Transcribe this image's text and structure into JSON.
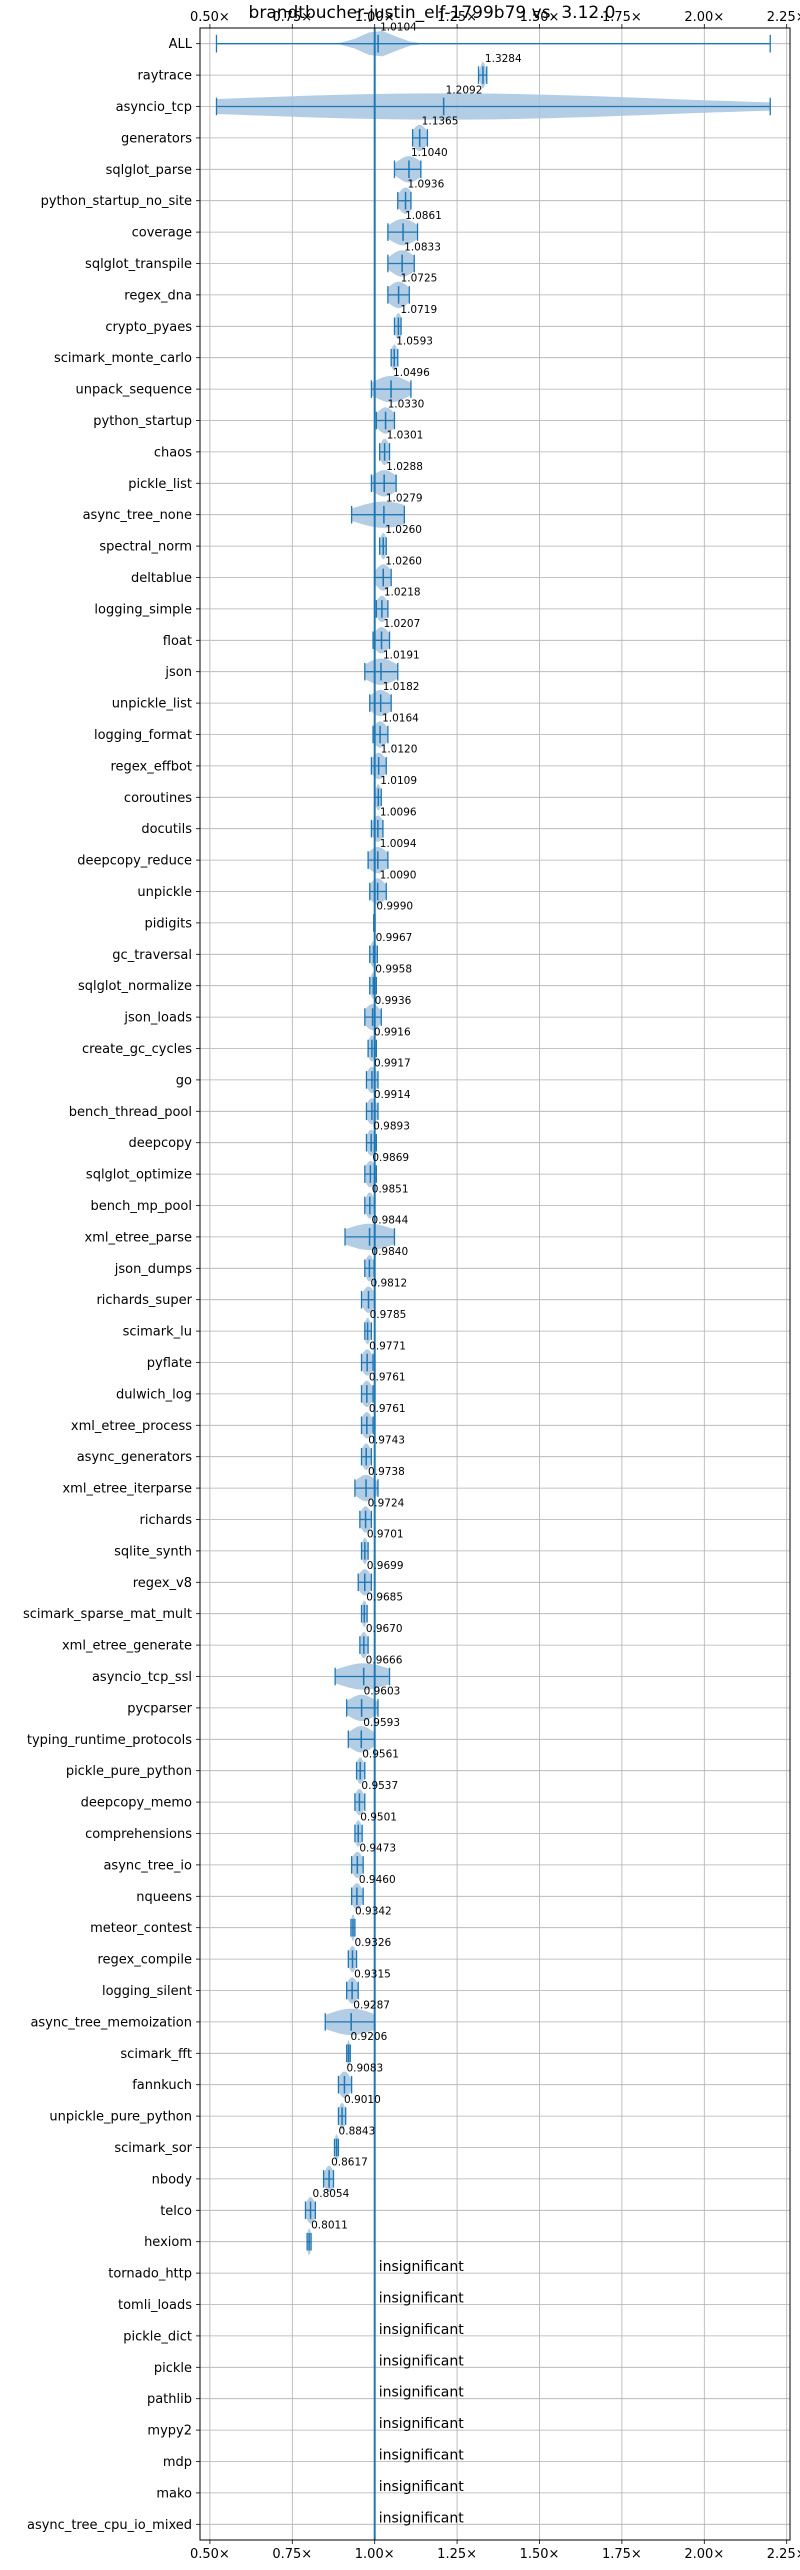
{
  "chart_data": {
    "type": "violin",
    "title": "brandtbucher-justin_elf-1799b79 vs. 3.12.0",
    "xlim": [
      0.47,
      2.26
    ],
    "x_ticks": [
      0.5,
      0.75,
      1.0,
      1.25,
      1.5,
      1.75,
      2.0,
      2.25
    ],
    "x_tick_labels": [
      "0.50×",
      "0.75×",
      "1.00×",
      "1.25×",
      "1.50×",
      "1.75×",
      "2.00×",
      "2.25×"
    ],
    "reference_line": 1.0,
    "grid": true,
    "colors": {
      "body": "#a6c4e0",
      "line": "#1f77b4",
      "grid": "#b0b0b0",
      "ref": "#1f77b4"
    },
    "insignificant_label": "insignificant",
    "benchmarks": [
      {
        "name": "ALL",
        "value": 1.0104,
        "label": "1.0104",
        "min": 0.52,
        "max": 2.2,
        "spread": 0.05
      },
      {
        "name": "raytrace",
        "value": 1.3284,
        "label": "1.3284",
        "min": 1.315,
        "max": 1.34,
        "spread": 0.008
      },
      {
        "name": "asyncio_tcp",
        "value": 1.2092,
        "label": "1.2092",
        "min": 0.52,
        "max": 2.2,
        "spread": 0.65
      },
      {
        "name": "generators",
        "value": 1.1365,
        "label": "1.1365",
        "min": 1.115,
        "max": 1.16,
        "spread": 0.02
      },
      {
        "name": "sqlglot_parse",
        "value": 1.104,
        "label": "1.1040",
        "min": 1.06,
        "max": 1.14,
        "spread": 0.035
      },
      {
        "name": "python_startup_no_site",
        "value": 1.0936,
        "label": "1.0936",
        "min": 1.07,
        "max": 1.11,
        "spread": 0.02
      },
      {
        "name": "coverage",
        "value": 1.0861,
        "label": "1.0861",
        "min": 1.04,
        "max": 1.13,
        "spread": 0.04
      },
      {
        "name": "sqlglot_transpile",
        "value": 1.0833,
        "label": "1.0833",
        "min": 1.04,
        "max": 1.12,
        "spread": 0.035
      },
      {
        "name": "regex_dna",
        "value": 1.0725,
        "label": "1.0725",
        "min": 1.04,
        "max": 1.105,
        "spread": 0.03
      },
      {
        "name": "crypto_pyaes",
        "value": 1.0719,
        "label": "1.0719",
        "min": 1.06,
        "max": 1.08,
        "spread": 0.01
      },
      {
        "name": "scimark_monte_carlo",
        "value": 1.0593,
        "label": "1.0593",
        "min": 1.05,
        "max": 1.07,
        "spread": 0.009
      },
      {
        "name": "unpack_sequence",
        "value": 1.0496,
        "label": "1.0496",
        "min": 0.99,
        "max": 1.11,
        "spread": 0.05
      },
      {
        "name": "python_startup",
        "value": 1.033,
        "label": "1.0330",
        "min": 1.005,
        "max": 1.06,
        "spread": 0.025
      },
      {
        "name": "chaos",
        "value": 1.0301,
        "label": "1.0301",
        "min": 1.015,
        "max": 1.045,
        "spread": 0.013
      },
      {
        "name": "pickle_list",
        "value": 1.0288,
        "label": "1.0288",
        "min": 0.99,
        "max": 1.065,
        "spread": 0.035
      },
      {
        "name": "async_tree_none",
        "value": 1.0279,
        "label": "1.0279",
        "min": 0.93,
        "max": 1.09,
        "spread": 0.08
      },
      {
        "name": "spectral_norm",
        "value": 1.026,
        "label": "1.0260",
        "min": 1.015,
        "max": 1.035,
        "spread": 0.009
      },
      {
        "name": "deltablue",
        "value": 1.026,
        "label": "1.0260",
        "min": 1.0,
        "max": 1.05,
        "spread": 0.022
      },
      {
        "name": "logging_simple",
        "value": 1.0218,
        "label": "1.0218",
        "min": 1.005,
        "max": 1.04,
        "spread": 0.016
      },
      {
        "name": "float",
        "value": 1.0207,
        "label": "1.0207",
        "min": 0.995,
        "max": 1.045,
        "spread": 0.022
      },
      {
        "name": "json",
        "value": 1.0191,
        "label": "1.0191",
        "min": 0.97,
        "max": 1.07,
        "spread": 0.045
      },
      {
        "name": "unpickle_list",
        "value": 1.0182,
        "label": "1.0182",
        "min": 0.985,
        "max": 1.05,
        "spread": 0.03
      },
      {
        "name": "logging_format",
        "value": 1.0164,
        "label": "1.0164",
        "min": 0.995,
        "max": 1.04,
        "spread": 0.02
      },
      {
        "name": "regex_effbot",
        "value": 1.012,
        "label": "1.0120",
        "min": 0.99,
        "max": 1.035,
        "spread": 0.02
      },
      {
        "name": "coroutines",
        "value": 1.0109,
        "label": "1.0109",
        "min": 1.0,
        "max": 1.02,
        "spread": 0.008
      },
      {
        "name": "docutils",
        "value": 1.0096,
        "label": "1.0096",
        "min": 0.99,
        "max": 1.025,
        "spread": 0.016
      },
      {
        "name": "deepcopy_reduce",
        "value": 1.0094,
        "label": "1.0094",
        "min": 0.98,
        "max": 1.04,
        "spread": 0.028
      },
      {
        "name": "unpickle",
        "value": 1.009,
        "label": "1.0090",
        "min": 0.985,
        "max": 1.035,
        "spread": 0.022
      },
      {
        "name": "pidigits",
        "value": 0.999,
        "label": "0.9990",
        "min": 0.997,
        "max": 1.001,
        "spread": 0.002
      },
      {
        "name": "gc_traversal",
        "value": 0.9967,
        "label": "0.9967",
        "min": 0.985,
        "max": 1.008,
        "spread": 0.01
      },
      {
        "name": "sqlglot_normalize",
        "value": 0.9958,
        "label": "0.9958",
        "min": 0.985,
        "max": 1.005,
        "spread": 0.009
      },
      {
        "name": "json_loads",
        "value": 0.9936,
        "label": "0.9936",
        "min": 0.97,
        "max": 1.02,
        "spread": 0.022
      },
      {
        "name": "create_gc_cycles",
        "value": 0.9916,
        "label": "0.9916",
        "min": 0.98,
        "max": 1.005,
        "spread": 0.011
      },
      {
        "name": "go",
        "value": 0.9917,
        "label": "0.9917",
        "min": 0.975,
        "max": 1.01,
        "spread": 0.015
      },
      {
        "name": "bench_thread_pool",
        "value": 0.9914,
        "label": "0.9914",
        "min": 0.975,
        "max": 1.01,
        "spread": 0.015
      },
      {
        "name": "deepcopy",
        "value": 0.9893,
        "label": "0.9893",
        "min": 0.975,
        "max": 1.005,
        "spread": 0.013
      },
      {
        "name": "sqlglot_optimize",
        "value": 0.9869,
        "label": "0.9869",
        "min": 0.97,
        "max": 1.005,
        "spread": 0.015
      },
      {
        "name": "bench_mp_pool",
        "value": 0.9851,
        "label": "0.9851",
        "min": 0.97,
        "max": 1.0,
        "spread": 0.012
      },
      {
        "name": "xml_etree_parse",
        "value": 0.9844,
        "label": "0.9844",
        "min": 0.91,
        "max": 1.06,
        "spread": 0.07
      },
      {
        "name": "json_dumps",
        "value": 0.984,
        "label": "0.9840",
        "min": 0.97,
        "max": 0.998,
        "spread": 0.012
      },
      {
        "name": "richards_super",
        "value": 0.9812,
        "label": "0.9812",
        "min": 0.96,
        "max": 1.0,
        "spread": 0.017
      },
      {
        "name": "scimark_lu",
        "value": 0.9785,
        "label": "0.9785",
        "min": 0.97,
        "max": 0.99,
        "spread": 0.009
      },
      {
        "name": "pyflate",
        "value": 0.9771,
        "label": "0.9771",
        "min": 0.96,
        "max": 0.995,
        "spread": 0.015
      },
      {
        "name": "dulwich_log",
        "value": 0.9761,
        "label": "0.9761",
        "min": 0.96,
        "max": 0.995,
        "spread": 0.015
      },
      {
        "name": "xml_etree_process",
        "value": 0.9761,
        "label": "0.9761",
        "min": 0.96,
        "max": 0.995,
        "spread": 0.015
      },
      {
        "name": "async_generators",
        "value": 0.9743,
        "label": "0.9743",
        "min": 0.96,
        "max": 0.99,
        "spread": 0.013
      },
      {
        "name": "xml_etree_iterparse",
        "value": 0.9738,
        "label": "0.9738",
        "min": 0.94,
        "max": 1.01,
        "spread": 0.03
      },
      {
        "name": "richards",
        "value": 0.9724,
        "label": "0.9724",
        "min": 0.955,
        "max": 0.99,
        "spread": 0.015
      },
      {
        "name": "sqlite_synth",
        "value": 0.9701,
        "label": "0.9701",
        "min": 0.96,
        "max": 0.98,
        "spread": 0.009
      },
      {
        "name": "regex_v8",
        "value": 0.9699,
        "label": "0.9699",
        "min": 0.95,
        "max": 0.99,
        "spread": 0.018
      },
      {
        "name": "scimark_sparse_mat_mult",
        "value": 0.9685,
        "label": "0.9685",
        "min": 0.96,
        "max": 0.977,
        "spread": 0.008
      },
      {
        "name": "xml_etree_generate",
        "value": 0.967,
        "label": "0.9670",
        "min": 0.955,
        "max": 0.98,
        "spread": 0.011
      },
      {
        "name": "asyncio_tcp_ssl",
        "value": 0.9666,
        "label": "0.9666",
        "min": 0.88,
        "max": 1.045,
        "spread": 0.075
      },
      {
        "name": "pycparser",
        "value": 0.9603,
        "label": "0.9603",
        "min": 0.915,
        "max": 1.01,
        "spread": 0.04
      },
      {
        "name": "typing_runtime_protocols",
        "value": 0.9593,
        "label": "0.9593",
        "min": 0.92,
        "max": 1.0,
        "spread": 0.035
      },
      {
        "name": "pickle_pure_python",
        "value": 0.9561,
        "label": "0.9561",
        "min": 0.945,
        "max": 0.97,
        "spread": 0.011
      },
      {
        "name": "deepcopy_memo",
        "value": 0.9537,
        "label": "0.9537",
        "min": 0.94,
        "max": 0.97,
        "spread": 0.013
      },
      {
        "name": "comprehensions",
        "value": 0.9501,
        "label": "0.9501",
        "min": 0.94,
        "max": 0.962,
        "spread": 0.01
      },
      {
        "name": "async_tree_io",
        "value": 0.9473,
        "label": "0.9473",
        "min": 0.93,
        "max": 0.965,
        "spread": 0.015
      },
      {
        "name": "nqueens",
        "value": 0.946,
        "label": "0.9460",
        "min": 0.93,
        "max": 0.965,
        "spread": 0.015
      },
      {
        "name": "meteor_contest",
        "value": 0.9342,
        "label": "0.9342",
        "min": 0.928,
        "max": 0.94,
        "spread": 0.006
      },
      {
        "name": "regex_compile",
        "value": 0.9326,
        "label": "0.9326",
        "min": 0.92,
        "max": 0.945,
        "spread": 0.011
      },
      {
        "name": "logging_silent",
        "value": 0.9315,
        "label": "0.9315",
        "min": 0.915,
        "max": 0.95,
        "spread": 0.015
      },
      {
        "name": "async_tree_memoization",
        "value": 0.9287,
        "label": "0.9287",
        "min": 0.85,
        "max": 1.0,
        "spread": 0.07
      },
      {
        "name": "scimark_fft",
        "value": 0.9206,
        "label": "0.9206",
        "min": 0.915,
        "max": 0.926,
        "spread": 0.005
      },
      {
        "name": "fannkuch",
        "value": 0.9083,
        "label": "0.9083",
        "min": 0.89,
        "max": 0.93,
        "spread": 0.017
      },
      {
        "name": "unpickle_pure_python",
        "value": 0.901,
        "label": "0.9010",
        "min": 0.89,
        "max": 0.912,
        "spread": 0.01
      },
      {
        "name": "scimark_sor",
        "value": 0.8843,
        "label": "0.8843",
        "min": 0.878,
        "max": 0.89,
        "spread": 0.006
      },
      {
        "name": "nbody",
        "value": 0.8617,
        "label": "0.8617",
        "min": 0.845,
        "max": 0.875,
        "spread": 0.013
      },
      {
        "name": "telco",
        "value": 0.8054,
        "label": "0.8054",
        "min": 0.79,
        "max": 0.82,
        "spread": 0.013
      },
      {
        "name": "hexiom",
        "value": 0.8011,
        "label": "0.8011",
        "min": 0.795,
        "max": 0.807,
        "spread": 0.006
      },
      {
        "name": "tornado_http",
        "value": null,
        "label": "insignificant"
      },
      {
        "name": "tomli_loads",
        "value": null,
        "label": "insignificant"
      },
      {
        "name": "pickle_dict",
        "value": null,
        "label": "insignificant"
      },
      {
        "name": "pickle",
        "value": null,
        "label": "insignificant"
      },
      {
        "name": "pathlib",
        "value": null,
        "label": "insignificant"
      },
      {
        "name": "mypy2",
        "value": null,
        "label": "insignificant"
      },
      {
        "name": "mdp",
        "value": null,
        "label": "insignificant"
      },
      {
        "name": "mako",
        "value": null,
        "label": "insignificant"
      },
      {
        "name": "async_tree_cpu_io_mixed",
        "value": null,
        "label": "insignificant"
      }
    ]
  }
}
